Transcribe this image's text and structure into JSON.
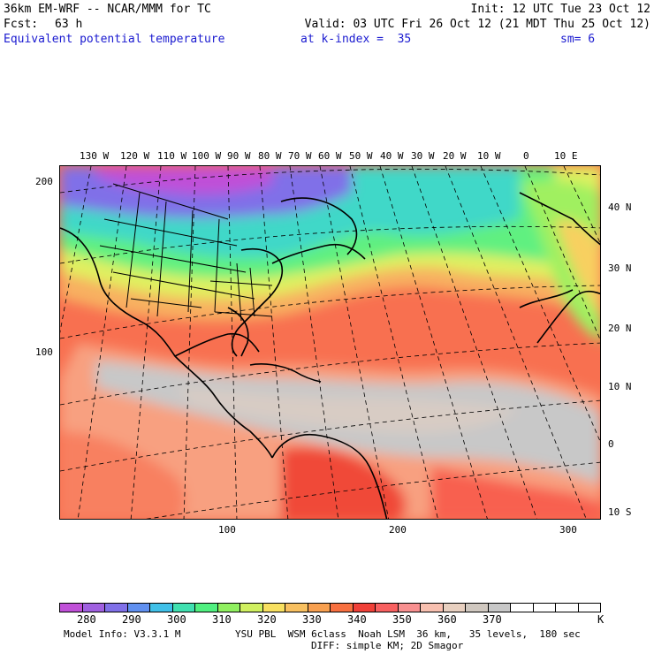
{
  "header": {
    "model_title": "36km EM-WRF -- NCAR/MMM for TC",
    "init": "Init: 12 UTC Tue 23 Oct 12",
    "fcst_label": "Fcst:",
    "fcst_value": "63 h",
    "valid": "Valid: 03 UTC Fri 26 Oct 12 (21 MDT Thu 25 Oct 12)",
    "field_name": "Equivalent potential temperature",
    "level": "at k-index =  35",
    "smoothing": "sm= 6"
  },
  "top_lon_labels": [
    "130 W",
    "120 W",
    "110 W",
    "100 W",
    "90 W",
    "80 W",
    "70 W",
    "60 W",
    "50 W",
    "40 W",
    "30 W",
    "20 W",
    "10 W",
    "0",
    "10 E"
  ],
  "right_lat_labels": [
    "40 N",
    "30 N",
    "20 N",
    "10 N",
    "0",
    "10 S"
  ],
  "left_grid_labels": [
    "200",
    "100"
  ],
  "bottom_grid_labels": [
    "100",
    "200",
    "300"
  ],
  "colorbar": {
    "labels": [
      "280",
      "290",
      "300",
      "310",
      "320",
      "330",
      "340",
      "350",
      "360",
      "370"
    ],
    "unit": "K",
    "colors": [
      "#c050d8",
      "#a060e0",
      "#8070e8",
      "#6090f0",
      "#40c0e8",
      "#40e0b0",
      "#50f080",
      "#90f060",
      "#d0f060",
      "#f8e060",
      "#f8c060",
      "#f8a050",
      "#f87040",
      "#f04038",
      "#f86060",
      "#f89090",
      "#f8c0b0",
      "#e8d0c0",
      "#d0c8c0",
      "#c8c8c8",
      "#ffffff",
      "#ffffff",
      "#ffffff",
      "#ffffff"
    ]
  },
  "footer": {
    "model_info": "Model Info: V3.3.1 M",
    "physics": "YSU PBL  WSM 6class  Noah LSM  36 km,   35 levels,  180 sec",
    "diffusion": "DIFF: simple KM; 2D Smagor"
  }
}
